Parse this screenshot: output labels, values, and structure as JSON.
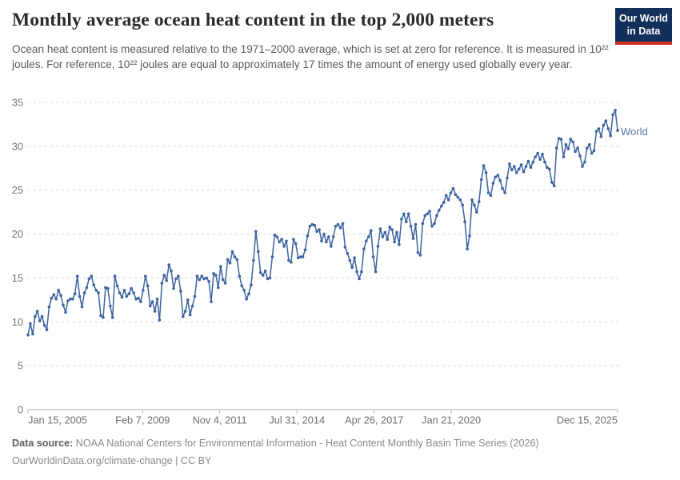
{
  "header": {
    "title": "Monthly average ocean heat content in the top 2,000 meters",
    "subtitle": "Ocean heat content is measured relative to the 1971–2000 average, which is set at zero for reference. It is measured in 10²² joules. For reference, 10²² joules are equal to approximately 17 times the amount of energy used globally every year."
  },
  "logo": {
    "line1": "Our World",
    "line2": "in Data",
    "bg_color": "#12305a",
    "accent_color": "#cf2e22"
  },
  "chart_data": {
    "type": "line",
    "title": "Monthly average ocean heat content in the top 2,000 meters",
    "unit": "10²² joules (anomaly relative to 1971–2000 average)",
    "frequency": "monthly",
    "x_start": "Jan 15, 2005",
    "x_end": "Dec 15, 2025",
    "ylim": [
      0,
      35
    ],
    "y_ticks": [
      0,
      5,
      10,
      15,
      20,
      25,
      30,
      35
    ],
    "grid": "horizontal dashed",
    "legend_position": "end-of-line label",
    "x_tick_labels": [
      {
        "label": "Jan 15, 2005",
        "m": 0,
        "anchor": "start"
      },
      {
        "label": "Feb 7, 2009",
        "m": 48.8,
        "anchor": "middle"
      },
      {
        "label": "Nov 4, 2011",
        "m": 81.6,
        "anchor": "middle"
      },
      {
        "label": "Jul 31, 2014",
        "m": 114.5,
        "anchor": "middle"
      },
      {
        "label": "Apr 26, 2017",
        "m": 147.4,
        "anchor": "middle"
      },
      {
        "label": "Jan 21, 2020",
        "m": 180.2,
        "anchor": "middle"
      },
      {
        "label": "Dec 15, 2025",
        "m": 251,
        "anchor": "end"
      }
    ],
    "series": [
      {
        "name": "World",
        "color": "#3d639f",
        "label_color": "#5878a8",
        "values": [
          8.5,
          9.8,
          8.6,
          10.6,
          11.2,
          10.1,
          10.6,
          9.6,
          9.1,
          11.7,
          12.7,
          13.1,
          12.6,
          13.6,
          13.0,
          11.9,
          11.1,
          12.4,
          12.6,
          12.6,
          13.2,
          15.2,
          12.9,
          11.7,
          13.3,
          13.9,
          14.9,
          15.2,
          14.2,
          13.6,
          13.3,
          10.7,
          10.5,
          13.9,
          13.8,
          11.8,
          10.5,
          15.2,
          14.1,
          13.3,
          12.8,
          13.6,
          12.9,
          13.2,
          13.8,
          13.3,
          12.6,
          12.7,
          12.3,
          13.6,
          15.2,
          14.1,
          11.8,
          12.3,
          11.2,
          12.6,
          10.2,
          14.4,
          15.3,
          14.7,
          16.5,
          15.8,
          13.8,
          14.9,
          15.2,
          13.5,
          10.6,
          11.2,
          12.5,
          10.8,
          11.8,
          12.9,
          15.2,
          14.8,
          15.2,
          14.9,
          15.0,
          14.6,
          12.3,
          15.5,
          15.3,
          13.9,
          16.3,
          14.8,
          14.4,
          17.1,
          16.7,
          18.0,
          17.4,
          17.1,
          15.2,
          14.1,
          13.6,
          12.6,
          13.2,
          14.2,
          17.0,
          20.3,
          18.0,
          15.6,
          15.3,
          15.8,
          14.9,
          15.0,
          17.4,
          19.9,
          19.7,
          19.1,
          19.4,
          18.6,
          19.2,
          17.0,
          16.8,
          19.4,
          18.9,
          17.3,
          17.4,
          17.4,
          18.2,
          19.8,
          20.9,
          21.1,
          21.0,
          20.3,
          20.5,
          19.2,
          20.0,
          19.1,
          19.7,
          18.6,
          19.7,
          20.9,
          21.1,
          20.7,
          21.2,
          18.5,
          17.8,
          17.0,
          16.2,
          17.3,
          15.7,
          14.9,
          15.7,
          18.3,
          19.2,
          19.7,
          20.4,
          17.4,
          15.7,
          18.6,
          20.6,
          19.7,
          20.2,
          19.4,
          20.8,
          20.5,
          19.1,
          20.2,
          18.8,
          21.7,
          22.3,
          21.4,
          22.3,
          20.9,
          19.5,
          21.1,
          17.9,
          17.6,
          21.2,
          22.1,
          22.3,
          22.6,
          20.9,
          21.2,
          22.1,
          22.7,
          23.2,
          23.6,
          24.4,
          23.9,
          24.7,
          25.2,
          24.5,
          24.2,
          23.9,
          23.3,
          21.4,
          18.3,
          19.8,
          23.9,
          23.3,
          22.5,
          23.7,
          26.2,
          27.8,
          27.0,
          24.7,
          24.4,
          25.8,
          26.5,
          26.7,
          26.1,
          25.2,
          24.7,
          26.4,
          28.0,
          27.3,
          27.7,
          27.0,
          27.4,
          27.9,
          27.1,
          27.7,
          28.3,
          27.6,
          28.2,
          28.8,
          29.2,
          28.5,
          29.1,
          28.2,
          27.6,
          27.4,
          25.9,
          25.5,
          29.8,
          30.9,
          30.8,
          28.8,
          30.2,
          29.7,
          30.8,
          30.5,
          29.4,
          29.8,
          28.9,
          27.7,
          28.2,
          29.8,
          30.2,
          29.2,
          29.5,
          31.7,
          32.0,
          31.1,
          32.4,
          32.9,
          32.0,
          31.2,
          33.6,
          34.1,
          31.8
        ]
      }
    ]
  },
  "footer": {
    "source_label": "Data source:",
    "source_text": " NOAA National Centers for Environmental Information - Heat Content Monthly Basin Time Series (2026)",
    "license_text": "OurWorldinData.org/climate-change | CC BY"
  }
}
